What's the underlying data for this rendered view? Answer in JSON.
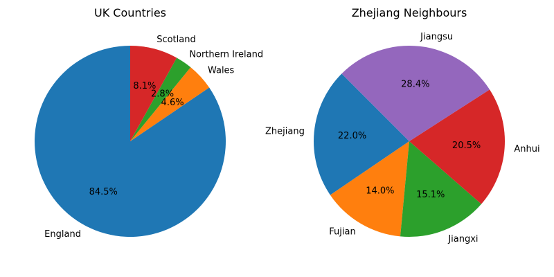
{
  "chart_data": [
    {
      "type": "pie",
      "title": "UK Countries",
      "start_angle_deg": 90,
      "direction": "counterclockwise",
      "slices": [
        {
          "label": "England",
          "value": 84.5,
          "pct_label": "84.5%",
          "color": "#1f77b4"
        },
        {
          "label": "Wales",
          "value": 4.6,
          "pct_label": "4.6%",
          "color": "#ff7f0e"
        },
        {
          "label": "Northern Ireland",
          "value": 2.8,
          "pct_label": "2.8%",
          "color": "#2ca02c"
        },
        {
          "label": "Scotland",
          "value": 8.1,
          "pct_label": "8.1%",
          "color": "#d62728"
        }
      ]
    },
    {
      "type": "pie",
      "title": "Zhejiang Neighbours",
      "start_angle_deg": 135,
      "direction": "counterclockwise",
      "slices": [
        {
          "label": "Zhejiang",
          "value": 22.0,
          "pct_label": "22.0%",
          "color": "#1f77b4"
        },
        {
          "label": "Fujian",
          "value": 14.0,
          "pct_label": "14.0%",
          "color": "#ff7f0e"
        },
        {
          "label": "Jiangxi",
          "value": 15.1,
          "pct_label": "15.1%",
          "color": "#2ca02c"
        },
        {
          "label": "Anhui",
          "value": 20.5,
          "pct_label": "20.5%",
          "color": "#d62728"
        },
        {
          "label": "Jiangsu",
          "value": 28.4,
          "pct_label": "28.4%",
          "color": "#9467bd"
        }
      ]
    }
  ]
}
